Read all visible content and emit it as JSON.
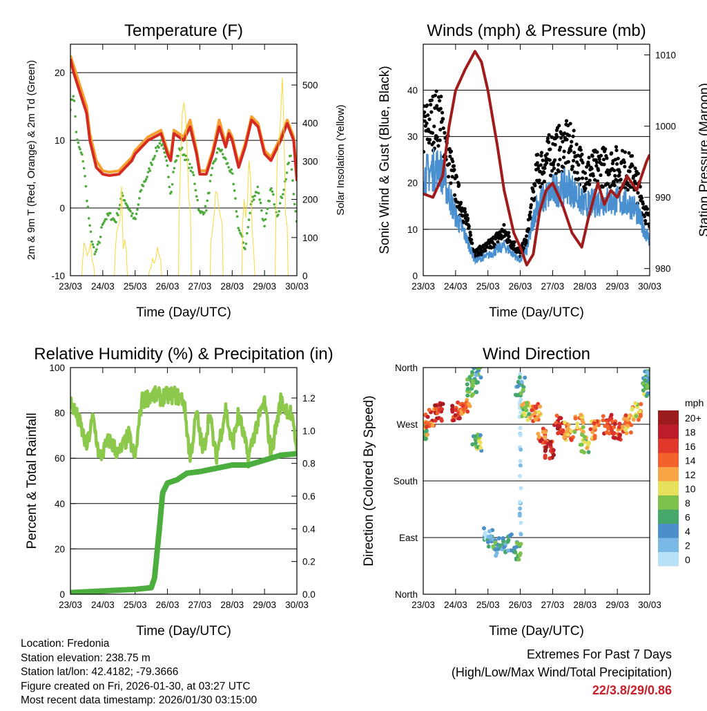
{
  "chart_data": [
    {
      "type": "line",
      "title": "Temperature (F)",
      "xlabel": "Time (Day/UTC)",
      "ylabel": "2m & 9m T (Red, Orange) & 2m Td (Green)",
      "y2label": "Solar Insolation (Yellow)",
      "xticks": [
        "23/03",
        "24/03",
        "25/03",
        "26/03",
        "27/03",
        "28/03",
        "29/03",
        "30/03"
      ],
      "xlim": [
        0,
        7
      ],
      "ylim": [
        -10,
        24.2
      ],
      "yticks": [
        -10,
        0,
        10,
        20
      ],
      "y2lim": [
        0,
        607
      ],
      "y2ticks": [
        0,
        100,
        200,
        300,
        400,
        500
      ],
      "grid": true,
      "series": [
        {
          "name": "9m T",
          "color": "#f7a030",
          "axis": "left",
          "x": [
            0,
            0.1,
            0.3,
            0.5,
            0.6,
            0.8,
            1.0,
            1.2,
            1.5,
            1.7,
            1.9,
            2.0,
            2.2,
            2.4,
            2.6,
            2.8,
            3.0,
            3.1,
            3.2,
            3.5,
            3.7,
            3.9,
            4.0,
            4.2,
            4.4,
            4.6,
            4.8,
            4.9,
            5.0,
            5.2,
            5.4,
            5.6,
            5.8,
            6.0,
            6.2,
            6.5,
            6.7,
            6.9,
            7.0
          ],
          "y": [
            22.5,
            21,
            18,
            15,
            11,
            7,
            5.5,
            5.3,
            5.5,
            6.5,
            7.5,
            8.5,
            9.5,
            10.5,
            11,
            11.5,
            8.5,
            7.5,
            11.5,
            10.5,
            13,
            8.5,
            5.5,
            5.5,
            8.5,
            13,
            9.5,
            11.5,
            10.5,
            6.5,
            9.5,
            13.5,
            12.5,
            8.5,
            7.5,
            10.5,
            13,
            10.5,
            4.5
          ]
        },
        {
          "name": "2m T",
          "color": "#d42a22",
          "axis": "left",
          "x": [
            0,
            0.1,
            0.3,
            0.5,
            0.6,
            0.8,
            1.0,
            1.2,
            1.5,
            1.7,
            1.9,
            2.0,
            2.2,
            2.4,
            2.6,
            2.8,
            3.0,
            3.1,
            3.2,
            3.5,
            3.7,
            3.9,
            4.0,
            4.2,
            4.4,
            4.6,
            4.8,
            4.9,
            5.0,
            5.2,
            5.4,
            5.6,
            5.8,
            6.0,
            6.2,
            6.5,
            6.7,
            6.9,
            7.0
          ],
          "y": [
            22,
            20,
            17,
            14,
            10,
            6,
            5,
            4.8,
            5,
            6,
            7,
            8,
            9,
            10,
            10.5,
            11,
            8,
            7,
            11,
            10,
            12,
            8,
            5,
            5,
            8,
            12,
            9,
            11,
            10,
            6,
            9,
            13,
            12,
            8,
            7,
            10,
            12.5,
            10,
            4
          ]
        },
        {
          "name": "2m Td",
          "color": "#4cab3a",
          "axis": "left",
          "style": "dots",
          "x": [
            0,
            0.1,
            0.2,
            0.4,
            0.5,
            0.6,
            0.75,
            0.9,
            1.0,
            1.2,
            1.4,
            1.6,
            1.8,
            2.0,
            2.2,
            2.4,
            2.6,
            2.8,
            3.0,
            3.1,
            3.2,
            3.4,
            3.6,
            3.8,
            4.0,
            4.2,
            4.4,
            4.6,
            4.8,
            5.0,
            5.2,
            5.4,
            5.6,
            5.8,
            6.0,
            6.2,
            6.4,
            6.6,
            6.8,
            7.0
          ],
          "y": [
            15,
            17,
            10,
            7,
            2,
            -3,
            -7,
            -5,
            -2,
            -1,
            -2,
            2,
            0,
            -2,
            3,
            5,
            8,
            10,
            6,
            2,
            6,
            9,
            7,
            5,
            -1,
            0,
            6,
            9,
            7,
            5,
            -3,
            -6,
            1,
            3,
            -3,
            3,
            -1,
            3,
            8,
            -3
          ]
        },
        {
          "name": "Solar Insolation",
          "color": "#f5d83a",
          "axis": "right",
          "style": "spikes",
          "x": [
            0.55,
            1.56,
            2.62,
            3.54,
            4.52,
            5.5,
            6.53
          ],
          "y": [
            150,
            250,
            100,
            580,
            300,
            330,
            570
          ]
        }
      ]
    },
    {
      "type": "scatter",
      "title": "Winds (mph) & Pressure (mb)",
      "xlabel": "Time (Day/UTC)",
      "ylabel": "Sonic Wind & Gust (Blue, Black)",
      "y2label": "Station Pressure (Maroon)",
      "xticks": [
        "23/03",
        "24/03",
        "25/03",
        "26/03",
        "27/03",
        "28/03",
        "29/03",
        "30/03"
      ],
      "xlim": [
        0,
        7
      ],
      "ylim": [
        0,
        49.9
      ],
      "yticks": [
        0,
        10,
        20,
        30,
        40
      ],
      "y2lim": [
        979,
        1011.5
      ],
      "y2ticks": [
        980,
        990,
        1000,
        1010
      ],
      "grid": true,
      "series": [
        {
          "name": "Gust",
          "color": "#000000",
          "axis": "left",
          "style": "dots",
          "factor": 1.45,
          "x": [
            0,
            0.5,
            1.0,
            1.3,
            1.6,
            2.0,
            2.5,
            3.0,
            3.2,
            3.5,
            4.0,
            4.5,
            5.0,
            5.5,
            6.0,
            6.5,
            7.0
          ],
          "y": [
            20,
            22,
            12,
            8,
            3,
            4,
            6,
            3,
            5,
            14,
            17,
            18,
            14,
            15,
            15,
            14,
            7
          ]
        },
        {
          "name": "Sonic Wind",
          "color": "#4a8fcf",
          "axis": "left",
          "style": "band",
          "x": [
            0,
            0.5,
            1.0,
            1.3,
            1.6,
            2.0,
            2.5,
            3.0,
            3.2,
            3.5,
            4.0,
            4.5,
            5.0,
            5.5,
            6.0,
            6.5,
            7.0
          ],
          "y": [
            20,
            22,
            12,
            8,
            3,
            4,
            6,
            3,
            5,
            14,
            17,
            18,
            14,
            15,
            15,
            14,
            7
          ]
        },
        {
          "name": "Station Pressure",
          "color": "#a01c1c",
          "axis": "right",
          "x": [
            0,
            0.3,
            0.6,
            0.8,
            1.0,
            1.3,
            1.6,
            1.8,
            2.0,
            2.3,
            2.5,
            2.8,
            3.0,
            3.2,
            3.4,
            3.6,
            3.8,
            4.0,
            4.3,
            4.6,
            4.9,
            5.1,
            5.4,
            5.6,
            5.8,
            6.0,
            6.3,
            6.6,
            6.9,
            7.0
          ],
          "y": [
            990.5,
            990,
            993,
            1000,
            1005,
            1008,
            1010.5,
            1009,
            1005,
            997,
            991,
            985,
            983,
            980.5,
            982,
            988,
            991,
            992,
            989,
            985,
            983,
            987,
            992,
            989,
            991,
            990,
            993,
            991,
            995,
            996
          ]
        }
      ]
    },
    {
      "type": "line",
      "title": "Relative Humidity (%) & Precipitation (in)",
      "xlabel": "Time (Day/UTC)",
      "ylabel": "Percent & Total Rainfall",
      "xticks": [
        "23/03",
        "24/03",
        "25/03",
        "26/03",
        "27/03",
        "28/03",
        "29/03",
        "30/03"
      ],
      "xlim": [
        0,
        7
      ],
      "ylim": [
        0,
        100
      ],
      "yticks": [
        0,
        20,
        40,
        60,
        80,
        100
      ],
      "y2lim": [
        0,
        1.386
      ],
      "y2ticks": [
        "0.0",
        "0.2",
        "0.4",
        "0.6",
        "0.8",
        "1.0",
        "1.2"
      ],
      "grid": true,
      "series": [
        {
          "name": "Relative Humidity",
          "color": "#8cc84b",
          "axis": "left",
          "x": [
            0,
            0.15,
            0.3,
            0.5,
            0.7,
            0.9,
            1.2,
            1.5,
            1.8,
            2.0,
            2.2,
            2.5,
            2.8,
            3.2,
            3.5,
            3.7,
            3.9,
            4.1,
            4.3,
            4.5,
            4.8,
            5.0,
            5.2,
            5.5,
            5.7,
            6.0,
            6.2,
            6.5,
            6.8,
            7.0
          ],
          "y": [
            85,
            80,
            75,
            65,
            78,
            60,
            68,
            62,
            70,
            60,
            85,
            88,
            87,
            88,
            86,
            60,
            80,
            62,
            80,
            60,
            82,
            65,
            80,
            60,
            72,
            85,
            62,
            85,
            80,
            65
          ]
        },
        {
          "name": "Total Precipitation",
          "color": "#4cae3e",
          "axis": "right",
          "x": [
            0,
            1.0,
            2.0,
            2.5,
            2.6,
            2.75,
            2.85,
            3.0,
            3.3,
            3.6,
            4.0,
            4.5,
            5.0,
            5.5,
            6.0,
            6.5,
            7.0
          ],
          "y": [
            0.01,
            0.02,
            0.03,
            0.04,
            0.1,
            0.4,
            0.62,
            0.68,
            0.7,
            0.74,
            0.75,
            0.77,
            0.79,
            0.79,
            0.82,
            0.85,
            0.86
          ]
        }
      ]
    },
    {
      "type": "scatter",
      "title": "Wind Direction",
      "xlabel": "Time (Day/UTC)",
      "ylabel": "Direction (Colored By Speed)",
      "xticks": [
        "23/03",
        "24/03",
        "25/03",
        "26/03",
        "27/03",
        "28/03",
        "29/03",
        "30/03"
      ],
      "xlim": [
        0,
        7
      ],
      "ylim": [
        0,
        360
      ],
      "yticks": [
        "North",
        "East",
        "South",
        "West",
        "North"
      ],
      "grid": true,
      "legend": {
        "title": "mph",
        "placement": "right",
        "labels": [
          "20+",
          "18",
          "16",
          "14",
          "12",
          "10",
          "8",
          "6",
          "4",
          "2",
          "0"
        ],
        "colors": [
          "#9b1b1e",
          "#be1e2a",
          "#e0382a",
          "#f2622a",
          "#f7a544",
          "#e6e05a",
          "#7dc24b",
          "#46a86b",
          "#4a8fc8",
          "#7ab8e6",
          "#b8e2f7"
        ]
      },
      "series": [
        {
          "name": "Direction",
          "x": [
            0,
            0.2,
            0.5,
            1.0,
            1.3,
            1.5,
            1.65,
            1.65,
            2.0,
            2.3,
            2.6,
            2.9,
            3.0,
            3.0,
            3.2,
            3.5,
            3.7,
            3.9,
            4.2,
            4.5,
            4.8,
            5.0,
            5.3,
            5.7,
            6.0,
            6.3,
            6.6,
            6.9,
            7.0
          ],
          "deg": [
            260,
            280,
            290,
            290,
            300,
            330,
            350,
            240,
            90,
            75,
            80,
            70,
            180,
            330,
            290,
            290,
            250,
            230,
            270,
            260,
            270,
            240,
            260,
            270,
            260,
            270,
            290,
            330,
            340
          ],
          "speed": [
            10,
            16,
            18,
            18,
            14,
            8,
            6,
            8,
            4,
            6,
            6,
            7,
            2,
            6,
            10,
            14,
            16,
            18,
            18,
            14,
            12,
            10,
            14,
            16,
            16,
            14,
            12,
            8,
            6
          ]
        }
      ]
    }
  ],
  "info": {
    "location": "Location: Fredonia",
    "elevation": "Station elevation: 238.75 m",
    "latlon": "Station lat/lon: 42.4182; -79.3666",
    "created": "Figure created on Fri, 2026-01-30, at 03:27 UTC",
    "recent": "Most recent data timestamp: 2026/01/30 03:15:00"
  },
  "extremes": {
    "title": "Extremes For Past 7 Days",
    "subtitle": "(High/Low/Max Wind/Total Precipitation)",
    "value": "22/3.8/29/0.86"
  }
}
